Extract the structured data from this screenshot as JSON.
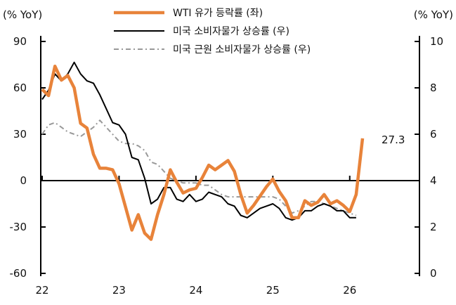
{
  "chart_data": {
    "type": "line",
    "left_axis_label": "(% YoY)",
    "right_axis_label": "(% YoY)",
    "left_ylim": [
      -60,
      90
    ],
    "left_ticks": [
      "90",
      "60",
      "30",
      "0",
      "-30",
      "-60"
    ],
    "left_tick_values": [
      90,
      60,
      30,
      0,
      -30,
      -60
    ],
    "right_ylim": [
      0,
      10
    ],
    "right_ticks": [
      "10",
      "8",
      "6",
      "4",
      "2",
      "0"
    ],
    "right_tick_values": [
      10,
      8,
      6,
      4,
      2,
      0
    ],
    "x_ticks": [
      "22",
      "23",
      "24",
      "25",
      "26"
    ],
    "x_tick_months": [
      0,
      12,
      24,
      36,
      48
    ],
    "x_unit": "months since Jan 2022",
    "annotation": "27.3",
    "series": [
      {
        "name": "WTI 유가 등락률 (좌)",
        "axis": "left",
        "color": "#E8833A",
        "style": "solid-thick",
        "values": [
          59,
          55,
          74,
          65,
          68,
          60,
          37,
          34,
          17,
          8,
          8,
          7,
          -2,
          -17,
          -32,
          -22,
          -34,
          -38,
          -22,
          -9,
          7,
          -1,
          -8,
          -6,
          -5,
          2,
          10,
          7,
          10,
          13,
          6,
          -9,
          -21,
          -16,
          -10,
          -4,
          1,
          -7,
          -13,
          -24,
          -24,
          -13,
          -16,
          -14,
          -9,
          -15,
          -13,
          -16,
          -20,
          -9,
          27.3
        ]
      },
      {
        "name": "미국 소비자물가 상승률 (우)",
        "axis": "right",
        "color": "#000000",
        "style": "solid",
        "values": [
          7.5,
          7.9,
          8.6,
          8.3,
          8.6,
          9.1,
          8.6,
          8.3,
          8.2,
          7.7,
          7.1,
          6.5,
          6.4,
          6.0,
          5.0,
          4.9,
          4.1,
          3.0,
          3.2,
          3.7,
          3.7,
          3.2,
          3.1,
          3.4,
          3.1,
          3.2,
          3.5,
          3.4,
          3.3,
          3.0,
          2.9,
          2.5,
          2.4,
          2.6,
          2.8,
          2.9,
          3.0,
          2.8,
          2.4,
          2.3,
          2.4,
          2.7,
          2.7,
          2.9,
          3.0,
          2.9,
          2.7,
          2.7,
          2.4,
          2.4
        ]
      },
      {
        "name": "미국 근원 소비자물가 상승률 (우)",
        "axis": "right",
        "color": "#999999",
        "style": "dash-dot",
        "values": [
          6.0,
          6.4,
          6.5,
          6.3,
          6.1,
          6.0,
          5.9,
          6.1,
          6.3,
          6.6,
          6.3,
          6.0,
          5.7,
          5.6,
          5.6,
          5.5,
          5.3,
          4.8,
          4.7,
          4.4,
          4.1,
          4.0,
          3.9,
          3.9,
          3.9,
          3.8,
          3.8,
          3.6,
          3.4,
          3.3,
          3.3,
          3.3,
          3.3,
          3.3,
          3.3,
          3.3,
          3.3,
          3.2,
          2.9,
          2.6,
          2.7,
          2.9,
          3.1,
          3.1,
          3.0,
          2.9,
          2.8,
          2.7,
          2.6,
          2.5
        ]
      }
    ],
    "legend": "top-center"
  }
}
